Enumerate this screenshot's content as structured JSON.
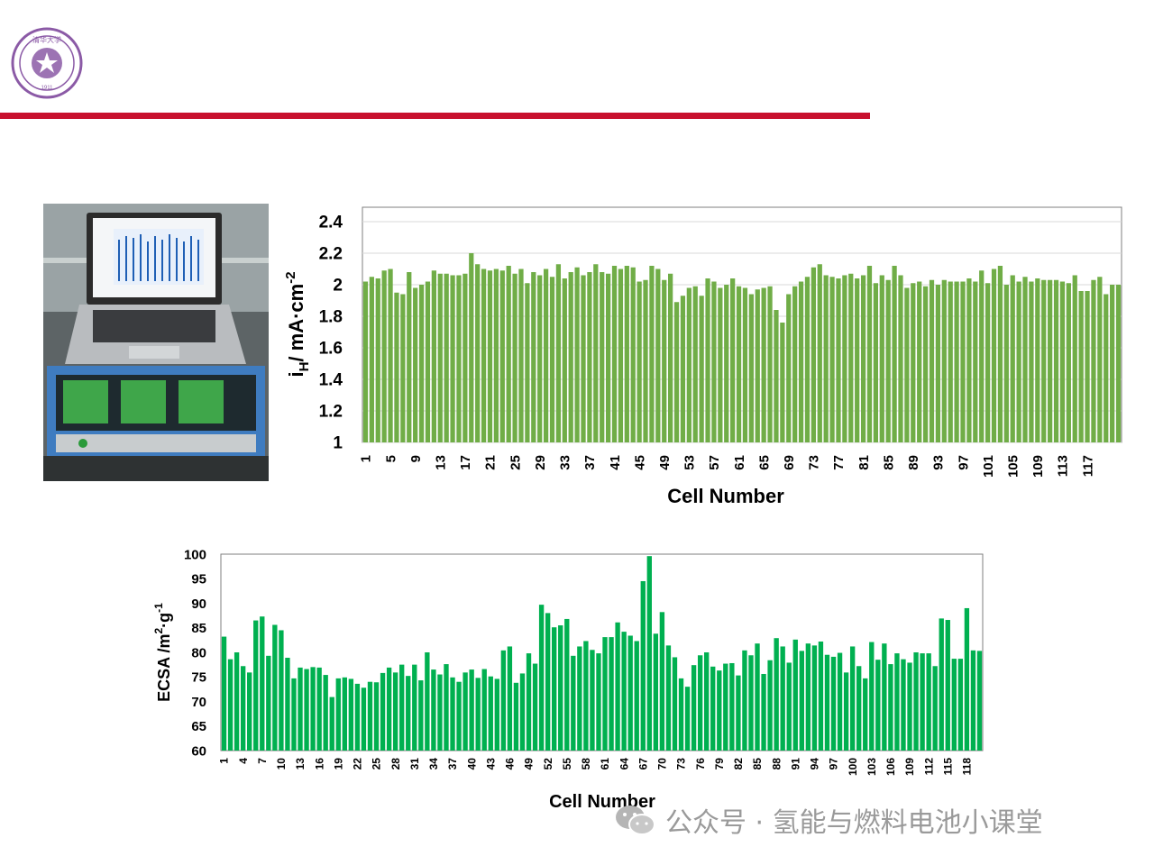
{
  "header": {
    "logo": {
      "icon": "university-seal-icon",
      "color": "#8b5aa6",
      "top_text": "清华大学",
      "side_text": "TSINGHUA UNIVERSITY",
      "year": "1911"
    },
    "rule_color": "#c8102e"
  },
  "photo": {
    "icon": "laptop-test-station-photo"
  },
  "charts": [
    {
      "type": "bar",
      "ylabel": "i",
      "ylabel_sub": "H",
      "ylabel_rest": "/ mA·cm",
      "ylabel_sup": "-2",
      "xlabel": "Cell Number",
      "ylim": [
        1,
        2.4
      ],
      "yticks": [
        "1",
        "1.2",
        "1.4",
        "1.6",
        "1.8",
        "2",
        "2.2",
        "2.4"
      ],
      "xtick_labels": [
        "1",
        "5",
        "9",
        "13",
        "17",
        "21",
        "25",
        "29",
        "33",
        "37",
        "41",
        "45",
        "49",
        "53",
        "57",
        "61",
        "65",
        "69",
        "73",
        "77",
        "81",
        "85",
        "89",
        "93",
        "97",
        "101",
        "105",
        "109",
        "113",
        "117"
      ],
      "xtick_start": 1,
      "xtick_step": 4,
      "color": "#70ad47",
      "grid": true,
      "values": [
        2.02,
        2.05,
        2.04,
        2.09,
        2.1,
        1.95,
        1.94,
        2.08,
        1.98,
        2.0,
        2.02,
        2.09,
        2.07,
        2.07,
        2.06,
        2.06,
        2.07,
        2.2,
        2.13,
        2.1,
        2.09,
        2.1,
        2.09,
        2.12,
        2.07,
        2.1,
        2.01,
        2.08,
        2.06,
        2.1,
        2.05,
        2.13,
        2.04,
        2.08,
        2.11,
        2.06,
        2.08,
        2.13,
        2.08,
        2.07,
        2.12,
        2.1,
        2.12,
        2.11,
        2.02,
        2.03,
        2.12,
        2.1,
        2.03,
        2.07,
        1.89,
        1.93,
        1.98,
        1.99,
        1.93,
        2.04,
        2.02,
        1.98,
        2.0,
        2.04,
        1.99,
        1.98,
        1.94,
        1.97,
        1.98,
        1.99,
        1.84,
        1.76,
        1.94,
        1.99,
        2.02,
        2.05,
        2.11,
        2.13,
        2.06,
        2.05,
        2.04,
        2.06,
        2.07,
        2.04,
        2.06,
        2.12,
        2.01,
        2.06,
        2.03,
        2.12,
        2.06,
        1.98,
        2.01,
        2.02,
        1.99,
        2.03,
        2.0,
        2.03,
        2.02,
        2.02,
        2.02,
        2.04,
        2.02,
        2.09,
        2.01,
        2.1,
        2.12,
        2.0,
        2.06,
        2.02,
        2.05,
        2.02,
        2.04,
        2.03,
        2.03,
        2.03,
        2.02,
        2.01,
        2.06,
        1.96,
        1.96,
        2.03,
        2.05,
        1.94,
        2.0,
        2.0
      ]
    },
    {
      "type": "bar",
      "ylabel": "ECSA /m",
      "ylabel_sup1": "2",
      "ylabel_mid": "·g",
      "ylabel_sup2": "-1",
      "xlabel": "Cell Number",
      "ylim": [
        60,
        100
      ],
      "yticks": [
        "60",
        "65",
        "70",
        "75",
        "80",
        "85",
        "90",
        "95",
        "100"
      ],
      "xtick_labels": [
        "1",
        "4",
        "7",
        "10",
        "13",
        "16",
        "19",
        "22",
        "25",
        "28",
        "31",
        "34",
        "37",
        "40",
        "43",
        "46",
        "49",
        "52",
        "55",
        "58",
        "61",
        "64",
        "67",
        "70",
        "73",
        "76",
        "79",
        "82",
        "85",
        "88",
        "91",
        "94",
        "97",
        "100",
        "103",
        "106",
        "109",
        "112",
        "115",
        "118"
      ],
      "xtick_start": 1,
      "xtick_step": 3,
      "color": "#00b050",
      "grid": false,
      "values": [
        83.2,
        78.6,
        80.0,
        77.2,
        75.9,
        86.5,
        87.3,
        79.3,
        85.6,
        84.5,
        78.9,
        74.7,
        76.9,
        76.6,
        77.0,
        76.9,
        75.4,
        70.9,
        74.7,
        74.9,
        74.6,
        73.6,
        72.8,
        74.0,
        73.9,
        75.8,
        76.9,
        75.9,
        77.5,
        75.2,
        77.5,
        74.3,
        80.0,
        76.5,
        75.5,
        77.6,
        74.9,
        74.0,
        75.9,
        76.5,
        74.8,
        76.6,
        75.1,
        74.6,
        80.4,
        81.2,
        73.8,
        75.7,
        79.8,
        77.7,
        89.7,
        88.0,
        85.1,
        85.5,
        86.8,
        79.3,
        81.2,
        82.3,
        80.5,
        79.8,
        83.1,
        83.1,
        86.1,
        84.2,
        83.4,
        82.3,
        94.5,
        99.6,
        83.8,
        88.2,
        81.4,
        79.0,
        74.7,
        73.0,
        77.4,
        79.4,
        80.0,
        77.1,
        76.3,
        77.7,
        77.8,
        75.3,
        80.4,
        79.4,
        81.8,
        75.6,
        78.4,
        82.9,
        81.2,
        77.9,
        82.6,
        80.3,
        81.8,
        81.4,
        82.2,
        79.5,
        79.1,
        79.9,
        75.9,
        81.2,
        77.2,
        74.7,
        82.1,
        78.5,
        81.8,
        77.6,
        79.8,
        78.6,
        77.9,
        80.0,
        79.8,
        79.8,
        77.2,
        86.9,
        86.6,
        78.7,
        78.7,
        89.0,
        80.4,
        80.3
      ]
    }
  ],
  "watermark": {
    "icon": "wechat-icon",
    "text": "公众号 · 氢能与燃料电池小课堂"
  }
}
